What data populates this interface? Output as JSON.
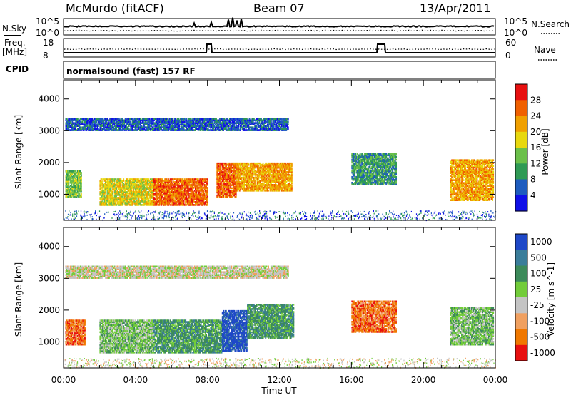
{
  "header": {
    "station": "McMurdo (fitACF)",
    "beam": "Beam 07",
    "date": "13/Apr/2011"
  },
  "noise_panel": {
    "left_label": "N.Sky",
    "left_ticks": [
      "10^5",
      "10^0"
    ],
    "right_ticks": [
      "10^5",
      "10^0"
    ],
    "right_label": "N.Search"
  },
  "freq_panel": {
    "left_label_1": "Freq.",
    "left_label_2": "[MHz]",
    "left_ticks": [
      "18",
      "8"
    ],
    "right_ticks": [
      "60",
      "0"
    ],
    "right_label": "Nave"
  },
  "cpid": {
    "label": "CPID",
    "value": "normalsound (fast) 157 RF"
  },
  "chart_data": [
    {
      "type": "heatmap",
      "title": "",
      "quantity": "Power",
      "xlabel": "",
      "ylabel": "Slant Range [km]",
      "xlim": [
        0,
        24
      ],
      "ylim": [
        180,
        4600
      ],
      "x_ticks": [
        "00:00",
        "04:00",
        "08:00",
        "12:00",
        "16:00",
        "20:00",
        "00:00"
      ],
      "y_ticks": [
        "1000",
        "2000",
        "3000",
        "4000"
      ],
      "colorbar": {
        "label": "Power [dB]",
        "ticks": [
          "4",
          "8",
          "12",
          "16",
          "20",
          "24",
          "28"
        ],
        "colors": [
          "#1010e8",
          "#1e5cbf",
          "#2f9a55",
          "#6bc04a",
          "#e8d80e",
          "#f0a000",
          "#f06000",
          "#e81010"
        ]
      },
      "regions": [
        {
          "t0": 0.1,
          "t1": 1.0,
          "r0": 900,
          "r1": 1750,
          "level": 3
        },
        {
          "t0": 2.0,
          "t1": 5.0,
          "r0": 650,
          "r1": 1500,
          "level": 4
        },
        {
          "t0": 5.0,
          "t1": 8.0,
          "r0": 650,
          "r1": 1500,
          "level": 6
        },
        {
          "t0": 8.5,
          "t1": 9.6,
          "r0": 900,
          "r1": 2000,
          "level": 6
        },
        {
          "t0": 9.6,
          "t1": 12.7,
          "r0": 1100,
          "r1": 2000,
          "level": 5
        },
        {
          "t0": 0.1,
          "t1": 12.5,
          "r0": 3000,
          "r1": 3400,
          "level": 1
        },
        {
          "t0": 16.0,
          "t1": 18.5,
          "r0": 1300,
          "r1": 2300,
          "level": 2
        },
        {
          "t0": 21.5,
          "t1": 23.9,
          "r0": 800,
          "r1": 2100,
          "level": 5
        }
      ]
    },
    {
      "type": "heatmap",
      "title": "",
      "quantity": "Velocity",
      "xlabel": "Time UT",
      "ylabel": "Slant Range [km]",
      "xlim": [
        0,
        24
      ],
      "ylim": [
        180,
        4600
      ],
      "x_ticks": [
        "00:00",
        "04:00",
        "08:00",
        "12:00",
        "16:00",
        "20:00",
        "00:00"
      ],
      "y_ticks": [
        "1000",
        "2000",
        "3000",
        "4000"
      ],
      "colorbar": {
        "label": "Velocity [m s^-1]",
        "ticks": [
          "1000",
          "500",
          "100",
          "25",
          "-25",
          "-100",
          "-500",
          "-1000"
        ],
        "colors": [
          "#1e48c8",
          "#3a7d9a",
          "#3c8a5a",
          "#72cc3a",
          "#c4c4c4",
          "#f0a060",
          "#f07800",
          "#e81010"
        ]
      },
      "regions": [
        {
          "t0": 0.1,
          "t1": 1.2,
          "r0": 900,
          "r1": 1700,
          "level": 6
        },
        {
          "t0": 2.0,
          "t1": 5.0,
          "r0": 650,
          "r1": 1700,
          "level": 3
        },
        {
          "t0": 5.0,
          "t1": 8.8,
          "r0": 650,
          "r1": 1700,
          "level": 2
        },
        {
          "t0": 8.8,
          "t1": 10.2,
          "r0": 700,
          "r1": 2000,
          "level": 0
        },
        {
          "t0": 10.2,
          "t1": 12.8,
          "r0": 1100,
          "r1": 2200,
          "level": 2
        },
        {
          "t0": 0.1,
          "t1": 12.5,
          "r0": 3000,
          "r1": 3400,
          "level": 4
        },
        {
          "t0": 16.0,
          "t1": 18.5,
          "r0": 1300,
          "r1": 2300,
          "level": 6
        },
        {
          "t0": 21.5,
          "t1": 23.9,
          "r0": 900,
          "r1": 2100,
          "level": 3
        }
      ]
    }
  ]
}
